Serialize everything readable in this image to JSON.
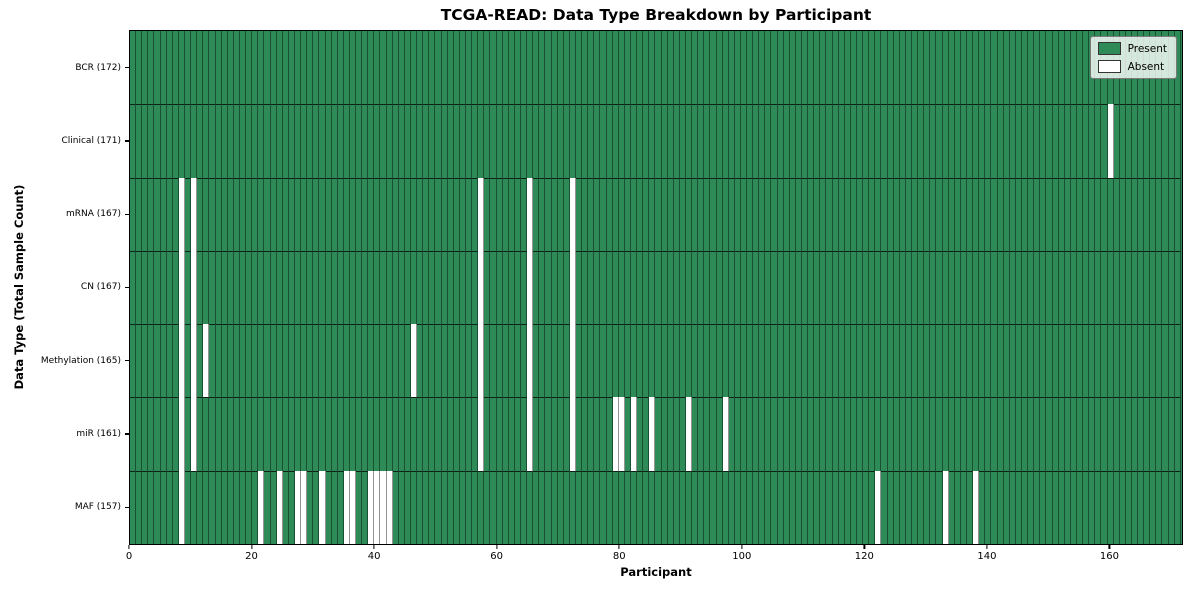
{
  "title": "TCGA-READ: Data Type Breakdown by Participant",
  "xlabel": "Participant",
  "ylabel": "Data Type (Total Sample Count)",
  "legend": {
    "present_label": "Present",
    "absent_label": "Absent",
    "position": "upper right"
  },
  "colors": {
    "present": "#2e8b57",
    "absent": "#ffffff",
    "cell_edge": "rgba(0,0,0,0.42)",
    "row_line": "rgba(0,0,0,0.75)",
    "legend_bg": "rgba(255,255,255,0.8)"
  },
  "chart_data": {
    "type": "heatmap",
    "title": "TCGA-READ: Data Type Breakdown by Participant",
    "xlabel": "Participant",
    "ylabel": "Data Type (Total Sample Count)",
    "x_range": [
      0,
      172
    ],
    "x_ticks": [
      0,
      20,
      40,
      60,
      80,
      100,
      120,
      140,
      160
    ],
    "n_participants": 172,
    "legend_entries": [
      "Present",
      "Absent"
    ],
    "grid": true,
    "rows": [
      {
        "name": "BCR",
        "label": "BCR (172)",
        "total_samples": 172,
        "absent_participants": []
      },
      {
        "name": "Clinical",
        "label": "Clinical (171)",
        "total_samples": 171,
        "absent_participants": [
          160
        ]
      },
      {
        "name": "mRNA",
        "label": "mRNA (167)",
        "total_samples": 167,
        "absent_participants": [
          8,
          10,
          57,
          65,
          72
        ]
      },
      {
        "name": "CN",
        "label": "CN (167)",
        "total_samples": 167,
        "absent_participants": [
          8,
          10,
          57,
          65,
          72
        ]
      },
      {
        "name": "Methylation",
        "label": "Methylation (165)",
        "total_samples": 165,
        "absent_participants": [
          8,
          10,
          12,
          46,
          57,
          65,
          72
        ]
      },
      {
        "name": "miR",
        "label": "miR (161)",
        "total_samples": 161,
        "absent_participants": [
          8,
          10,
          57,
          65,
          72,
          79,
          80,
          82,
          85,
          91,
          97
        ]
      },
      {
        "name": "MAF",
        "label": "MAF (157)",
        "total_samples": 157,
        "absent_participants": [
          8,
          21,
          24,
          27,
          28,
          31,
          35,
          36,
          39,
          40,
          41,
          42,
          122,
          133,
          138
        ]
      }
    ]
  }
}
